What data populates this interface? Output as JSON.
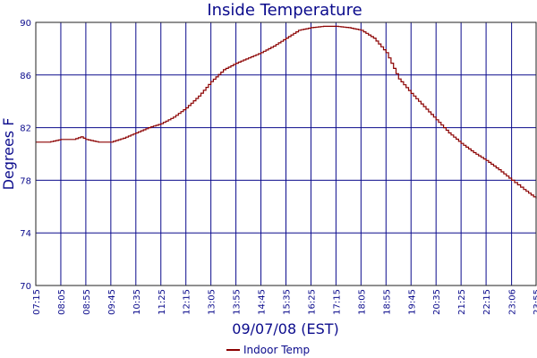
{
  "chart_data": {
    "type": "line",
    "title": "Inside Temperature",
    "xlabel": "09/07/08 (EST)",
    "ylabel": "Degrees F",
    "ylim": [
      70,
      90
    ],
    "y_ticks": [
      70,
      74,
      78,
      82,
      86,
      90
    ],
    "grid": true,
    "legend_position": "bottom-center",
    "x_tick_labels": [
      "07:15",
      "08:05",
      "08:55",
      "09:45",
      "10:35",
      "11:25",
      "12:15",
      "13:05",
      "13:55",
      "14:45",
      "15:35",
      "16:25",
      "17:15",
      "18:05",
      "18:55",
      "19:45",
      "20:35",
      "21:25",
      "22:15",
      "23:06",
      "23:55"
    ],
    "series": [
      {
        "name": "Indoor Temp",
        "color": "#8b0000",
        "x": [
          "07:15",
          "07:40",
          "08:05",
          "08:30",
          "08:45",
          "08:55",
          "09:20",
          "09:45",
          "10:10",
          "10:35",
          "11:00",
          "11:25",
          "11:50",
          "12:15",
          "12:40",
          "13:05",
          "13:30",
          "13:55",
          "14:20",
          "14:45",
          "15:10",
          "15:35",
          "16:00",
          "16:25",
          "16:50",
          "17:15",
          "17:40",
          "18:05",
          "18:30",
          "18:55",
          "19:20",
          "19:45",
          "20:10",
          "20:35",
          "21:00",
          "21:25",
          "21:50",
          "22:15",
          "22:40",
          "23:06",
          "23:30",
          "23:55"
        ],
        "values": [
          80.9,
          80.9,
          81.1,
          81.1,
          81.3,
          81.1,
          80.9,
          80.9,
          81.2,
          81.6,
          82.0,
          82.3,
          82.8,
          83.5,
          84.4,
          85.5,
          86.4,
          86.9,
          87.3,
          87.7,
          88.2,
          88.8,
          89.4,
          89.6,
          89.7,
          89.7,
          89.6,
          89.4,
          88.8,
          87.7,
          85.7,
          84.6,
          83.6,
          82.6,
          81.6,
          80.8,
          80.1,
          79.5,
          78.8,
          78.0,
          77.3,
          76.6
        ]
      }
    ]
  }
}
